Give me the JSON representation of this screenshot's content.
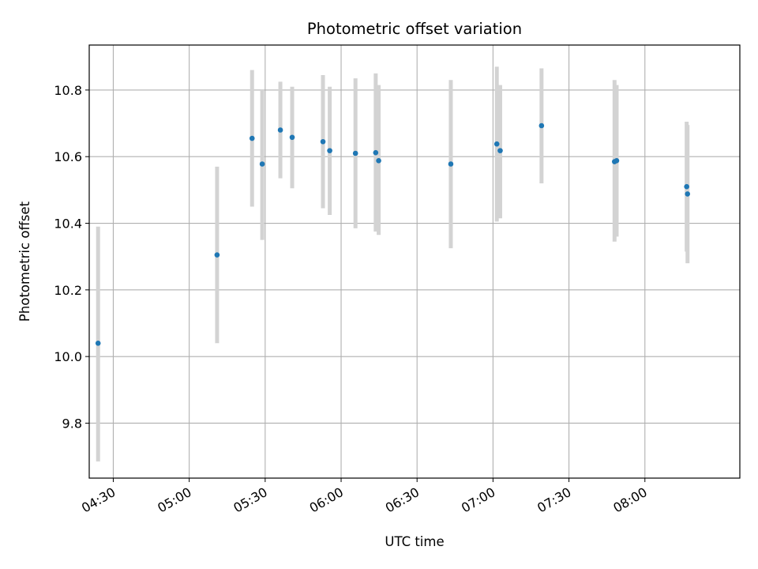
{
  "chart_data": {
    "type": "scatter",
    "title": "Photometric offset variation",
    "xlabel": "UTC time",
    "ylabel": "Photometric offset",
    "xlim": [
      "04:20:30",
      "08:37:30"
    ],
    "ylim": [
      9.635,
      10.935
    ],
    "x_ticks": [
      "04:30",
      "05:00",
      "05:30",
      "06:00",
      "06:30",
      "07:00",
      "07:30",
      "08:00"
    ],
    "y_ticks": [
      9.8,
      10.0,
      10.2,
      10.4,
      10.6,
      10.8
    ],
    "grid": true,
    "colors": {
      "marker": "#1f77b4",
      "errorbar": "#d3d3d3",
      "grid": "#b0b0b0"
    },
    "series": [
      {
        "points": [
          {
            "x": "04:24:00",
            "y": 10.04,
            "ylow": 9.685,
            "yhigh": 10.39
          },
          {
            "x": "05:11:00",
            "y": 10.305,
            "ylow": 10.04,
            "yhigh": 10.57
          },
          {
            "x": "05:24:50",
            "y": 10.655,
            "ylow": 10.45,
            "yhigh": 10.86
          },
          {
            "x": "05:28:50",
            "y": 10.578,
            "ylow": 10.35,
            "yhigh": 10.8
          },
          {
            "x": "05:36:00",
            "y": 10.68,
            "ylow": 10.535,
            "yhigh": 10.825
          },
          {
            "x": "05:40:40",
            "y": 10.658,
            "ylow": 10.505,
            "yhigh": 10.81
          },
          {
            "x": "05:52:50",
            "y": 10.645,
            "ylow": 10.445,
            "yhigh": 10.845
          },
          {
            "x": "05:55:30",
            "y": 10.618,
            "ylow": 10.425,
            "yhigh": 10.81
          },
          {
            "x": "06:05:40",
            "y": 10.61,
            "ylow": 10.385,
            "yhigh": 10.835
          },
          {
            "x": "06:13:40",
            "y": 10.612,
            "ylow": 10.375,
            "yhigh": 10.85
          },
          {
            "x": "06:14:50",
            "y": 10.588,
            "ylow": 10.365,
            "yhigh": 10.815
          },
          {
            "x": "06:43:20",
            "y": 10.578,
            "ylow": 10.325,
            "yhigh": 10.83
          },
          {
            "x": "07:01:30",
            "y": 10.638,
            "ylow": 10.405,
            "yhigh": 10.87
          },
          {
            "x": "07:02:50",
            "y": 10.618,
            "ylow": 10.415,
            "yhigh": 10.815
          },
          {
            "x": "07:19:10",
            "y": 10.693,
            "ylow": 10.52,
            "yhigh": 10.865
          },
          {
            "x": "07:48:00",
            "y": 10.585,
            "ylow": 10.345,
            "yhigh": 10.83
          },
          {
            "x": "07:48:50",
            "y": 10.588,
            "ylow": 10.36,
            "yhigh": 10.815
          },
          {
            "x": "08:16:30",
            "y": 10.51,
            "ylow": 10.315,
            "yhigh": 10.705
          },
          {
            "x": "08:16:50",
            "y": 10.488,
            "ylow": 10.28,
            "yhigh": 10.695
          }
        ]
      }
    ]
  }
}
